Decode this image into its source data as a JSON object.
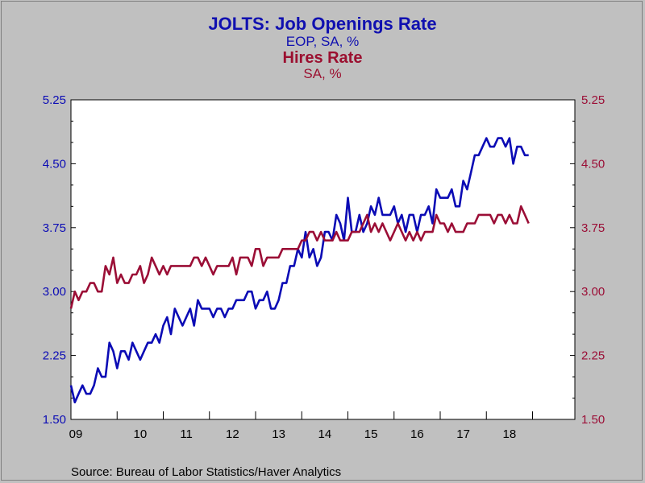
{
  "chart_data": {
    "type": "line",
    "title": "JOLTS: Job Openings Rate",
    "title_subtitle": "EOP, SA, %",
    "title2": "Hires Rate",
    "title2_subtitle": "SA, %",
    "source": "Source:  Bureau of Labor Statistics/Haver Analytics",
    "ylim": [
      1.5,
      5.25
    ],
    "yticks": [
      "1.50",
      "2.25",
      "3.00",
      "3.75",
      "4.50",
      "5.25"
    ],
    "xlim": [
      2009.0,
      2019.917
    ],
    "x_tick_labels": [
      "09",
      "10",
      "11",
      "12",
      "13",
      "14",
      "15",
      "16",
      "17",
      "18"
    ],
    "x_start": "2009-01",
    "x_step": "monthly",
    "grid": false,
    "colors": {
      "job_openings": "#0b0bb5",
      "hires": "#9b0e36",
      "background": "#c0c0c0",
      "plot_bg": "#ffffff"
    },
    "series": [
      {
        "name": "Job Openings Rate",
        "axis": "left",
        "values": [
          1.9,
          1.7,
          1.8,
          1.9,
          1.8,
          1.8,
          1.9,
          2.1,
          2.0,
          2.0,
          2.4,
          2.3,
          2.1,
          2.3,
          2.3,
          2.2,
          2.4,
          2.3,
          2.2,
          2.3,
          2.4,
          2.4,
          2.5,
          2.4,
          2.6,
          2.7,
          2.5,
          2.8,
          2.7,
          2.6,
          2.7,
          2.8,
          2.6,
          2.9,
          2.8,
          2.8,
          2.8,
          2.7,
          2.8,
          2.8,
          2.7,
          2.8,
          2.8,
          2.9,
          2.9,
          2.9,
          3.0,
          3.0,
          2.8,
          2.9,
          2.9,
          3.0,
          2.8,
          2.8,
          2.9,
          3.1,
          3.1,
          3.3,
          3.3,
          3.5,
          3.4,
          3.7,
          3.4,
          3.5,
          3.3,
          3.4,
          3.7,
          3.7,
          3.6,
          3.9,
          3.8,
          3.6,
          4.1,
          3.7,
          3.7,
          3.9,
          3.7,
          3.8,
          4.0,
          3.9,
          4.1,
          3.9,
          3.9,
          3.9,
          4.0,
          3.8,
          3.9,
          3.7,
          3.9,
          3.9,
          3.7,
          3.9,
          3.9,
          4.0,
          3.8,
          4.2,
          4.1,
          4.1,
          4.1,
          4.2,
          4.0,
          4.0,
          4.3,
          4.2,
          4.4,
          4.6,
          4.6,
          4.7,
          4.8,
          4.7,
          4.7,
          4.8,
          4.8,
          4.7,
          4.8,
          4.5,
          4.7,
          4.7,
          4.6,
          4.6
        ]
      },
      {
        "name": "Hires Rate",
        "axis": "right",
        "values": [
          2.8,
          3.0,
          2.9,
          3.0,
          3.0,
          3.1,
          3.1,
          3.0,
          3.0,
          3.3,
          3.2,
          3.4,
          3.1,
          3.2,
          3.1,
          3.1,
          3.2,
          3.2,
          3.3,
          3.1,
          3.2,
          3.4,
          3.3,
          3.2,
          3.3,
          3.2,
          3.3,
          3.3,
          3.3,
          3.3,
          3.3,
          3.3,
          3.4,
          3.4,
          3.3,
          3.4,
          3.3,
          3.2,
          3.3,
          3.3,
          3.3,
          3.3,
          3.4,
          3.2,
          3.4,
          3.4,
          3.4,
          3.3,
          3.5,
          3.5,
          3.3,
          3.4,
          3.4,
          3.4,
          3.4,
          3.5,
          3.5,
          3.5,
          3.5,
          3.5,
          3.6,
          3.6,
          3.7,
          3.7,
          3.6,
          3.7,
          3.6,
          3.6,
          3.6,
          3.7,
          3.6,
          3.6,
          3.6,
          3.7,
          3.7,
          3.7,
          3.8,
          3.9,
          3.7,
          3.8,
          3.7,
          3.8,
          3.7,
          3.6,
          3.7,
          3.8,
          3.7,
          3.6,
          3.7,
          3.6,
          3.7,
          3.6,
          3.7,
          3.7,
          3.7,
          3.9,
          3.8,
          3.8,
          3.7,
          3.8,
          3.7,
          3.7,
          3.7,
          3.8,
          3.8,
          3.8,
          3.9,
          3.9,
          3.9,
          3.9,
          3.8,
          3.9,
          3.9,
          3.8,
          3.9,
          3.8,
          3.8,
          4.0,
          3.9,
          3.8
        ]
      }
    ]
  }
}
